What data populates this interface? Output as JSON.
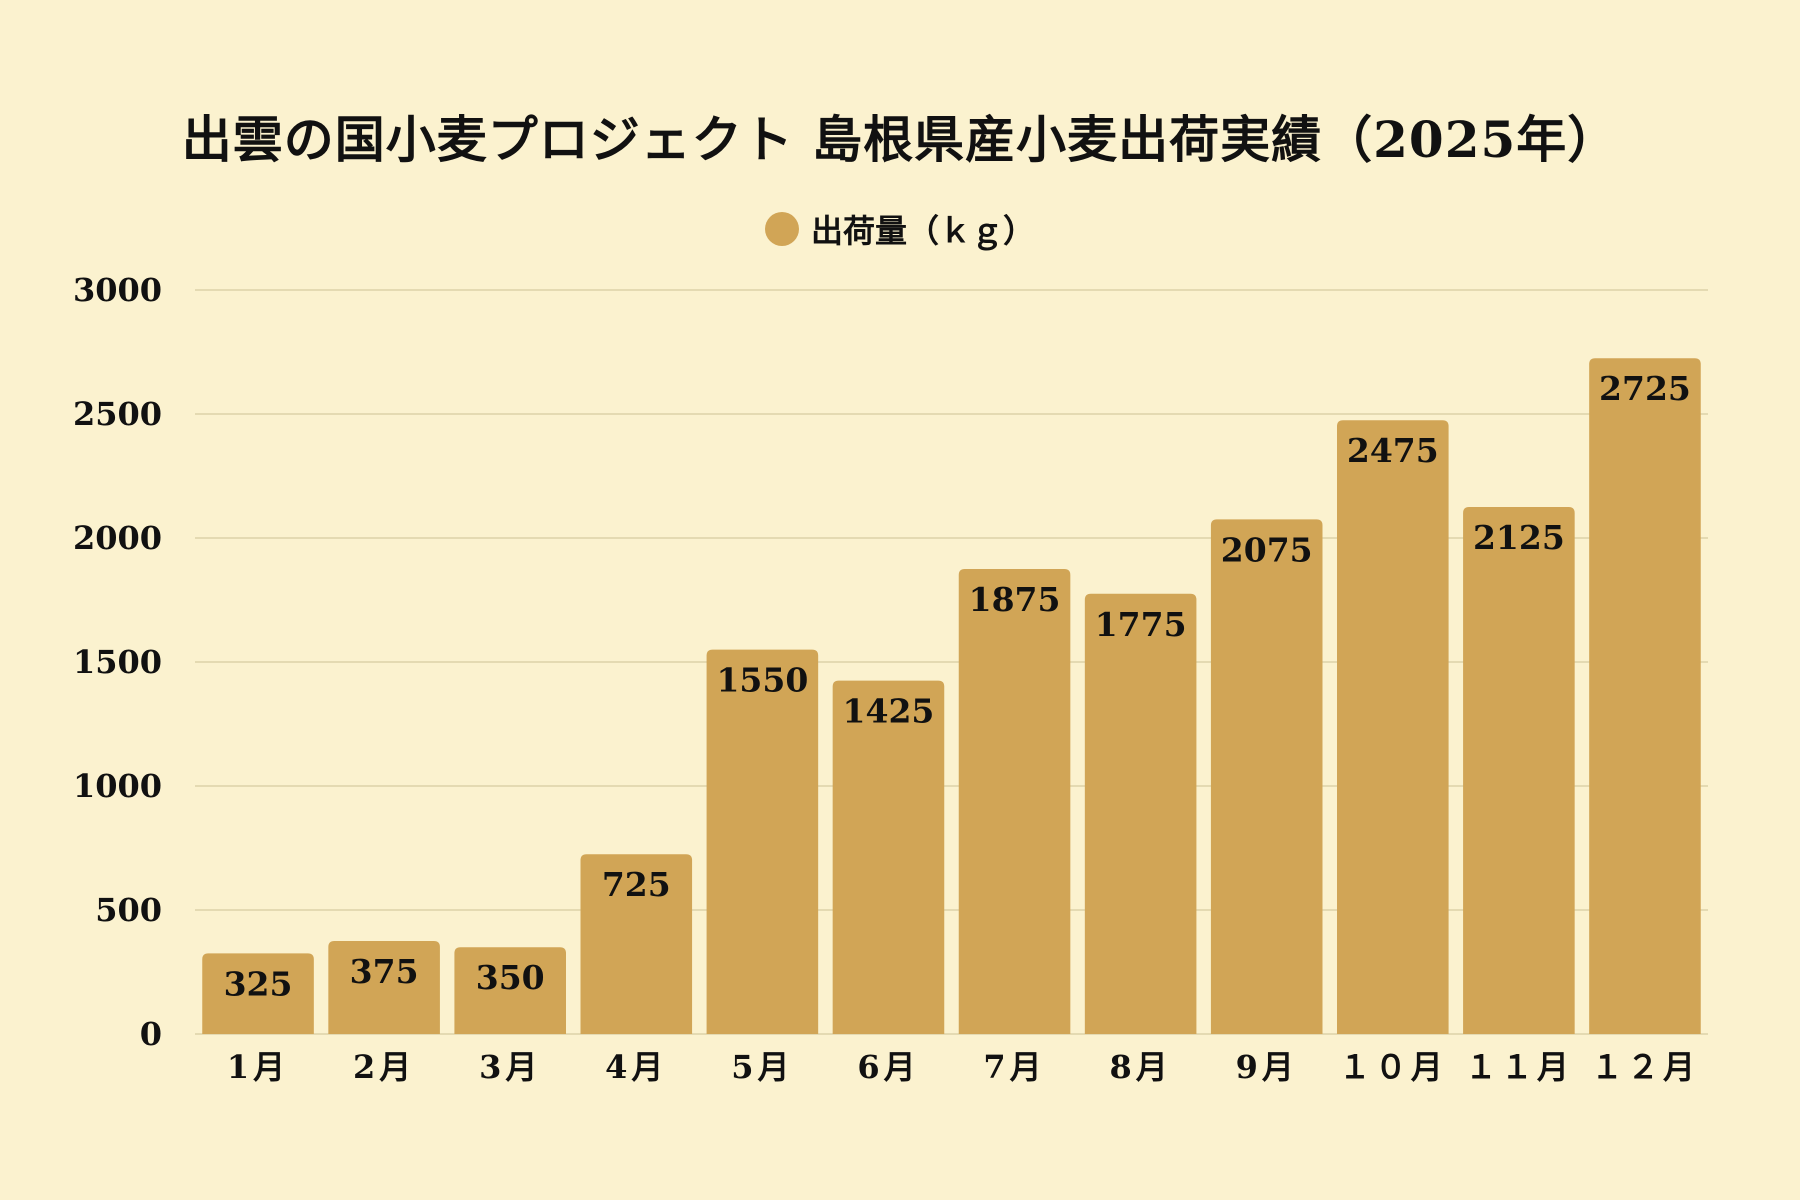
{
  "chart_data": {
    "type": "bar",
    "title": "出雲の国小麦プロジェクト 島根県産小麦出荷実績（2025年）",
    "categories": [
      "1月",
      "2月",
      "3月",
      "4月",
      "5月",
      "6月",
      "7月",
      "8月",
      "9月",
      "１０月",
      "１１月",
      "１２月"
    ],
    "series": [
      {
        "name": "出荷量（ｋｇ）",
        "values": [
          325,
          375,
          350,
          725,
          1550,
          1425,
          1875,
          1775,
          2075,
          2475,
          2125,
          2725
        ]
      }
    ],
    "xlabel": "",
    "ylabel": "",
    "ylim": [
      0,
      3000
    ],
    "yticks": [
      "0",
      "500",
      "1000",
      "1500",
      "2000",
      "2500",
      "3000"
    ],
    "grid": true,
    "legend_position": "top-center",
    "colors": {
      "bar": "#d1a556",
      "background": "#fbf2cf",
      "grid": "#ddd2a8"
    }
  }
}
